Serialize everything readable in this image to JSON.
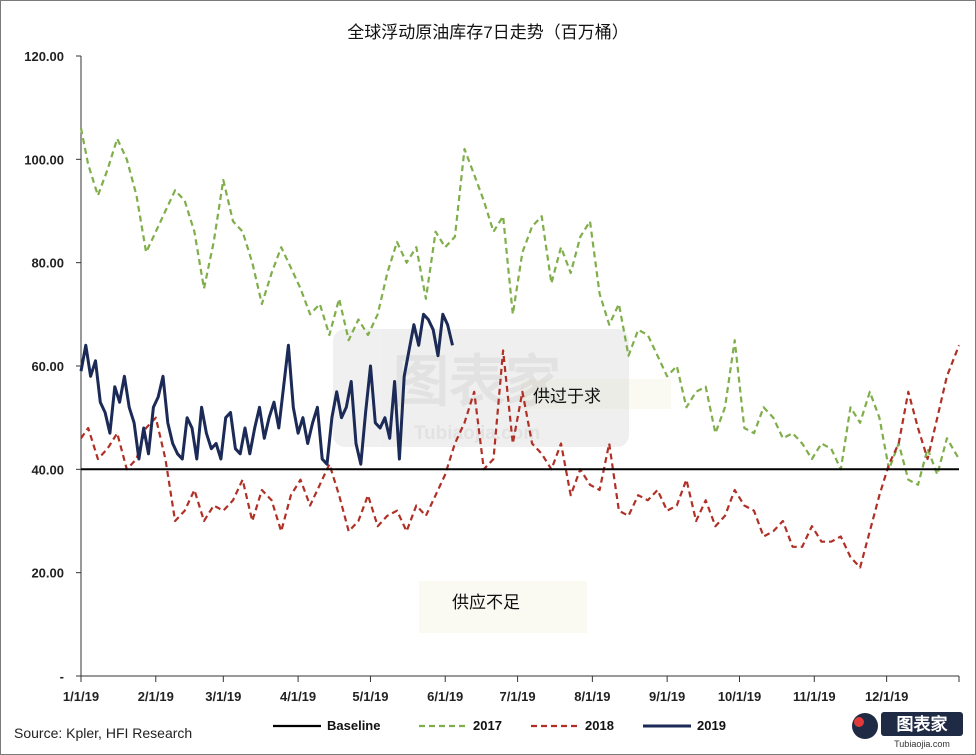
{
  "chart_data": {
    "type": "line",
    "title": "全球浮动原油库存7日走势（百万桶）",
    "xlabel": "",
    "ylabel": "",
    "ylim": [
      0,
      120
    ],
    "y_ticks": [
      "-",
      "20.00",
      "40.00",
      "60.00",
      "80.00",
      "100.00",
      "120.00"
    ],
    "y_tick_values": [
      0,
      20,
      40,
      60,
      80,
      100,
      120
    ],
    "x_ticks": [
      "1/1/19",
      "2/1/19",
      "3/1/19",
      "4/1/19",
      "5/1/19",
      "6/1/19",
      "7/1/19",
      "8/1/19",
      "9/1/19",
      "10/1/19",
      "11/1/19",
      "12/1/19"
    ],
    "grid": false,
    "legend_position": "bottom",
    "annotations": [
      "供过于求",
      "供应不足"
    ],
    "baseline": 40,
    "series": [
      {
        "name": "Baseline",
        "color": "#000000",
        "style": "solid",
        "x": [
          1,
          365
        ],
        "values": [
          40,
          40
        ]
      },
      {
        "name": "2017",
        "color": "#7fae4a",
        "style": "dashed",
        "x": [
          1,
          4,
          8,
          12,
          16,
          20,
          24,
          28,
          32,
          36,
          40,
          44,
          48,
          52,
          56,
          60,
          64,
          68,
          72,
          76,
          80,
          84,
          88,
          92,
          96,
          100,
          104,
          108,
          112,
          116,
          120,
          124,
          128,
          132,
          136,
          140,
          144,
          148,
          152,
          156,
          160,
          164,
          168,
          172,
          176,
          180,
          184,
          188,
          192,
          196,
          200,
          204,
          208,
          212,
          216,
          220,
          224,
          228,
          232,
          236,
          240,
          244,
          248,
          252,
          256,
          260,
          264,
          268,
          272,
          276,
          280,
          284,
          288,
          292,
          296,
          300,
          304,
          308,
          312,
          316,
          320,
          324,
          328,
          332,
          336,
          340,
          344,
          348,
          352,
          356,
          360,
          365
        ],
        "values": [
          106,
          99,
          93,
          98,
          104,
          100,
          93,
          82,
          86,
          90,
          94,
          92,
          86,
          75,
          84,
          96,
          88,
          86,
          80,
          72,
          78,
          83,
          79,
          75,
          70,
          72,
          66,
          73,
          65,
          69,
          66,
          70,
          78,
          84,
          80,
          83,
          73,
          86,
          83,
          85,
          102,
          97,
          92,
          86,
          89,
          70,
          82,
          87,
          89,
          76,
          83,
          78,
          85,
          88,
          74,
          68,
          72,
          62,
          67,
          66,
          62,
          58,
          60,
          52,
          55,
          56,
          47,
          52,
          65,
          48,
          47,
          52,
          50,
          46,
          47,
          45,
          42,
          45,
          44,
          40,
          52,
          49,
          55,
          50,
          40,
          45,
          38,
          37,
          44,
          39,
          46,
          42
        ]
      },
      {
        "name": "2018",
        "color": "#b03026",
        "style": "dashed",
        "x": [
          1,
          4,
          8,
          12,
          16,
          20,
          24,
          28,
          32,
          36,
          40,
          44,
          48,
          52,
          56,
          60,
          64,
          68,
          72,
          76,
          80,
          84,
          88,
          92,
          96,
          100,
          104,
          108,
          112,
          116,
          120,
          124,
          128,
          132,
          136,
          140,
          144,
          148,
          152,
          156,
          160,
          164,
          168,
          172,
          176,
          180,
          184,
          188,
          192,
          196,
          200,
          204,
          208,
          212,
          216,
          220,
          224,
          228,
          232,
          236,
          240,
          244,
          248,
          252,
          256,
          260,
          264,
          268,
          272,
          276,
          280,
          284,
          288,
          292,
          296,
          300,
          304,
          308,
          312,
          316,
          320,
          324,
          328,
          332,
          336,
          340,
          344,
          348,
          352,
          356,
          360,
          365
        ],
        "values": [
          46,
          48,
          42,
          44,
          47,
          40,
          42,
          48,
          50,
          42,
          30,
          32,
          36,
          30,
          33,
          32,
          34,
          38,
          30,
          36,
          34,
          28,
          35,
          38,
          33,
          37,
          41,
          35,
          28,
          30,
          35,
          29,
          31,
          32,
          28,
          33,
          31,
          35,
          39,
          45,
          49,
          55,
          40,
          42,
          63,
          45,
          55,
          45,
          43,
          40,
          45,
          35,
          40,
          37,
          36,
          45,
          32,
          31,
          35,
          34,
          36,
          32,
          33,
          38,
          30,
          34,
          29,
          31,
          36,
          33,
          32,
          27,
          28,
          30,
          25,
          25,
          29,
          26,
          26,
          27,
          23,
          21,
          28,
          35,
          41,
          45,
          55,
          48,
          42,
          50,
          58,
          64
        ]
      },
      {
        "name": "2019",
        "color": "#1b2a56",
        "style": "solid",
        "x": [
          1,
          3,
          5,
          7,
          9,
          11,
          13,
          15,
          17,
          19,
          21,
          23,
          25,
          27,
          29,
          31,
          33,
          35,
          37,
          39,
          41,
          43,
          45,
          47,
          49,
          51,
          53,
          55,
          57,
          59,
          61,
          63,
          65,
          67,
          69,
          71,
          73,
          75,
          77,
          79,
          81,
          83,
          85,
          87,
          89,
          91,
          93,
          95,
          97,
          99,
          101,
          103,
          105,
          107,
          109,
          111,
          113,
          115,
          117,
          119,
          121,
          123,
          125,
          127,
          129,
          131,
          133,
          135,
          137,
          139,
          141,
          143,
          145,
          147,
          149,
          151,
          153,
          155
        ],
        "values": [
          59,
          64,
          58,
          61,
          53,
          51,
          47,
          56,
          53,
          58,
          52,
          49,
          42,
          48,
          43,
          52,
          54,
          58,
          49,
          45,
          43,
          42,
          50,
          48,
          42,
          52,
          47,
          44,
          45,
          42,
          50,
          51,
          44,
          43,
          48,
          43,
          48,
          52,
          46,
          50,
          53,
          48,
          56,
          64,
          52,
          47,
          50,
          45,
          49,
          52,
          42,
          41,
          50,
          55,
          50,
          52,
          57,
          45,
          41,
          51,
          60,
          49,
          48,
          50,
          46,
          57,
          42,
          58,
          63,
          68,
          64,
          70,
          69,
          67,
          62,
          70,
          68,
          64
        ]
      }
    ]
  },
  "source": "Source: Kpler, HFI Research",
  "legend": [
    {
      "label": "Baseline",
      "color": "#000000",
      "style": "solid"
    },
    {
      "label": "2017",
      "color": "#7fae4a",
      "style": "dashed"
    },
    {
      "label": "2018",
      "color": "#b03026",
      "style": "dashed"
    },
    {
      "label": "2019",
      "color": "#1b2a56",
      "style": "solid"
    }
  ],
  "watermark": {
    "text": "图表家",
    "subtext": "Tubiaojia.com"
  },
  "logo": {
    "text": "图表家",
    "subtext": "Tubiaojia.com"
  }
}
